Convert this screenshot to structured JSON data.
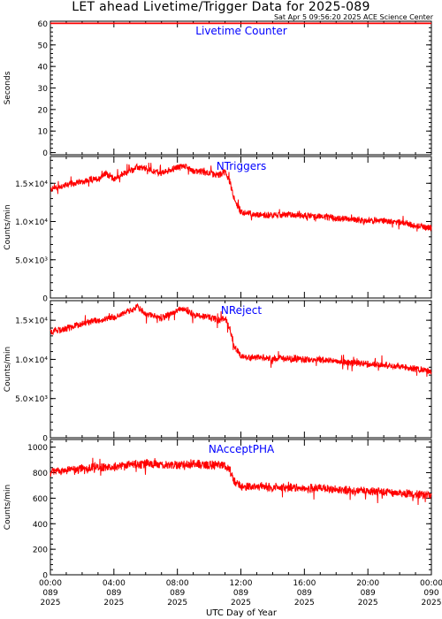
{
  "title": "LET ahead Livetime/Trigger Data for 2025-089",
  "subtitle": "Sat Apr  5 09:56:20 2025 ACE Science Center",
  "xlabel": "UTC Day of Year",
  "colors": {
    "data": "#ff0000",
    "panel_label": "#0000ff",
    "axis": "#000000"
  },
  "x_ticks": [
    {
      "time": "00:00",
      "doy": "089",
      "year": "2025"
    },
    {
      "time": "04:00",
      "doy": "089",
      "year": "2025"
    },
    {
      "time": "08:00",
      "doy": "089",
      "year": "2025"
    },
    {
      "time": "12:00",
      "doy": "089",
      "year": "2025"
    },
    {
      "time": "16:00",
      "doy": "089",
      "year": "2025"
    },
    {
      "time": "20:00",
      "doy": "089",
      "year": "2025"
    },
    {
      "time": "00:00",
      "doy": "090",
      "year": "2025"
    }
  ],
  "chart_data": [
    {
      "type": "line",
      "title": "Livetime Counter",
      "ylabel": "Seconds",
      "ylim": [
        -1,
        61
      ],
      "yticks": [
        "0",
        "10",
        "20",
        "30",
        "40",
        "50",
        "60"
      ],
      "ytick_values": [
        0,
        10,
        20,
        30,
        40,
        50,
        60
      ],
      "x_unit": "hours",
      "xlim": [
        0,
        24
      ],
      "x": [
        0,
        24
      ],
      "y": [
        60,
        60
      ],
      "noise": 0
    },
    {
      "type": "line",
      "title": "NTriggers",
      "ylabel": "Counts/min",
      "ylim": [
        0,
        18500
      ],
      "yticks": [
        "0",
        "5.0×10³",
        "1.0×10⁴",
        "1.5×10⁴"
      ],
      "ytick_values": [
        0,
        5000,
        10000,
        15000
      ],
      "x_unit": "hours",
      "xlim": [
        0,
        24
      ],
      "x": [
        0,
        1,
        2,
        3,
        3.5,
        4,
        5,
        5.5,
        6,
        7,
        8,
        8.5,
        9,
        10,
        10.5,
        11,
        11.3,
        11.6,
        12,
        13,
        14,
        15,
        16,
        17,
        18,
        19,
        20,
        21,
        22,
        23,
        24
      ],
      "y": [
        14200,
        14800,
        15200,
        15600,
        16300,
        15600,
        16600,
        17100,
        16900,
        16300,
        17100,
        17300,
        16600,
        16400,
        16000,
        16500,
        15200,
        12800,
        11200,
        10900,
        10800,
        10900,
        10800,
        10700,
        10400,
        10300,
        10100,
        10100,
        9900,
        9500,
        9100
      ],
      "noise": 500
    },
    {
      "type": "line",
      "title": "NReject",
      "ylabel": "Counts/min",
      "ylim": [
        0,
        17500
      ],
      "yticks": [
        "0",
        "5.0×10³",
        "1.0×10⁴",
        "1.5×10⁴"
      ],
      "ytick_values": [
        0,
        5000,
        10000,
        15000
      ],
      "x_unit": "hours",
      "xlim": [
        0,
        24
      ],
      "x": [
        0,
        1,
        2,
        3,
        4,
        5,
        5.5,
        6,
        7,
        8,
        8.5,
        9,
        10,
        10.5,
        11,
        11.3,
        11.6,
        12,
        13,
        14,
        15,
        16,
        17,
        18,
        19,
        20,
        21,
        22,
        23,
        24
      ],
      "y": [
        13400,
        14000,
        14600,
        15000,
        15400,
        16200,
        16700,
        15800,
        15300,
        16200,
        16400,
        15700,
        15400,
        15000,
        15300,
        14000,
        11600,
        10400,
        10200,
        10100,
        10100,
        10000,
        10000,
        9800,
        9600,
        9400,
        9300,
        9100,
        8800,
        8500
      ],
      "noise": 500
    },
    {
      "type": "line",
      "title": "NAcceptPHA",
      "ylabel": "Counts/min",
      "ylim": [
        0,
        1060
      ],
      "yticks": [
        "0",
        "200",
        "400",
        "600",
        "800",
        "1000"
      ],
      "ytick_values": [
        0,
        200,
        400,
        600,
        800,
        1000
      ],
      "x_unit": "hours",
      "xlim": [
        0,
        24
      ],
      "x": [
        0,
        1,
        2,
        3,
        4,
        5,
        6,
        7,
        8,
        9,
        10,
        11,
        11.3,
        11.6,
        12,
        13,
        14,
        15,
        16,
        17,
        18,
        19,
        20,
        21,
        22,
        23,
        24
      ],
      "y": [
        810,
        820,
        830,
        840,
        845,
        860,
        870,
        860,
        860,
        870,
        860,
        860,
        820,
        730,
        690,
        690,
        685,
        680,
        680,
        675,
        665,
        660,
        655,
        650,
        640,
        630,
        625
      ],
      "noise": 40
    }
  ]
}
